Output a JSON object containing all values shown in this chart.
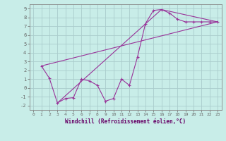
{
  "background_color": "#c8ede8",
  "grid_color": "#aacccc",
  "line_color": "#993399",
  "xlim": [
    -0.5,
    23.5
  ],
  "ylim": [
    -2.5,
    9.5
  ],
  "xticks": [
    0,
    1,
    2,
    3,
    4,
    5,
    6,
    7,
    8,
    9,
    10,
    11,
    12,
    13,
    14,
    15,
    16,
    17,
    18,
    19,
    20,
    21,
    22,
    23
  ],
  "yticks": [
    -2,
    -1,
    0,
    1,
    2,
    3,
    4,
    5,
    6,
    7,
    8,
    9
  ],
  "xlabel": "Windchill (Refroidissement éolien,°C)",
  "series1_x": [
    1,
    2,
    3,
    4,
    5,
    6,
    7,
    8,
    9,
    10,
    11,
    12,
    13,
    14,
    15,
    16,
    17,
    18,
    19,
    20,
    21,
    22,
    23
  ],
  "series1_y": [
    2.5,
    1.1,
    -1.7,
    -1.2,
    -1.1,
    1.0,
    0.8,
    0.3,
    -1.5,
    -1.2,
    1.0,
    0.3,
    3.5,
    7.3,
    8.8,
    8.9,
    8.5,
    7.8,
    7.5,
    7.5,
    7.5,
    7.5,
    7.5
  ],
  "series2_x": [
    1,
    23
  ],
  "series2_y": [
    2.5,
    7.5
  ],
  "series3_x": [
    3,
    16,
    23
  ],
  "series3_y": [
    -1.7,
    8.9,
    7.5
  ]
}
